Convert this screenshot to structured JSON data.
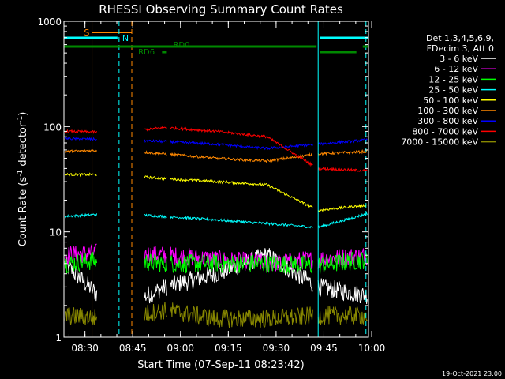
{
  "chart_data": {
    "type": "line",
    "title": "RHESSI Observing Summary Count Rates",
    "xlabel": "Start Time (07-Sep-11 08:23:42)",
    "ylabel_main": "Count Rate (s",
    "ylabel_sup1": "-1",
    "ylabel_mid": " detector",
    "ylabel_sup2": "-1",
    "ylabel_end": ")",
    "yscale": "log",
    "ylim": [
      1,
      1000
    ],
    "y_ticks": [
      1,
      10,
      100,
      1000
    ],
    "y_tick_labels": [
      "1",
      "10",
      "100",
      "1000"
    ],
    "xlim_min": [
      -0.3,
      95.3
    ],
    "x_ticks_min": [
      6.3,
      21.3,
      36.3,
      51.3,
      66.3,
      81.3,
      96.3
    ],
    "x_tick_labels": [
      "08:30",
      "08:45",
      "09:00",
      "09:15",
      "09:30",
      "09:45",
      "10:00"
    ],
    "legend_header": [
      "Det 1,3,4,5,6,9,",
      "FDecim 3, Att 0"
    ],
    "series": [
      {
        "name": "3 - 6 keV",
        "color": "#ffffff",
        "values": [
          5,
          1.8,
          3,
          4,
          6,
          3,
          2.5
        ]
      },
      {
        "name": "6 - 12 keV",
        "color": "#ff00ff",
        "values": [
          6,
          6.5,
          6,
          5.5,
          5,
          5.5,
          6
        ]
      },
      {
        "name": "12 - 25 keV",
        "color": "#00ff00",
        "values": [
          5,
          5.5,
          5,
          5,
          5,
          4.8,
          5.5
        ]
      },
      {
        "name": "25 - 50 keV",
        "color": "#00ffff",
        "values": [
          14,
          15,
          14,
          13,
          12,
          11,
          15
        ]
      },
      {
        "name": "50 - 100 keV",
        "color": "#ffff00",
        "values": [
          35,
          35,
          32,
          30,
          28,
          16,
          18
        ]
      },
      {
        "name": "100 - 300 keV",
        "color": "#ff8800",
        "values": [
          58,
          60,
          55,
          50,
          47,
          55,
          58
        ]
      },
      {
        "name": "300 - 800 keV",
        "color": "#0000ff",
        "values": [
          77,
          75,
          72,
          68,
          62,
          68,
          75
        ]
      },
      {
        "name": "800 - 7000 keV",
        "color": "#ff0000",
        "values": [
          90,
          88,
          98,
          90,
          80,
          40,
          38
        ]
      },
      {
        "name": "7000 - 15000 keV",
        "color": "#888800",
        "values": [
          1.6,
          1.5,
          1.8,
          1.5,
          1.5,
          1.6,
          1.6
        ]
      }
    ],
    "annotations": {
      "saa_label": "S",
      "night_label": "N",
      "rd0_label": "RD0",
      "rd6_label": "RD6"
    },
    "footer_date": "19-Oct-2021 23:00",
    "colors": {
      "background": "#000000",
      "axes": "#ffffff",
      "saa": "#ff8800",
      "night": "#00ffff",
      "rd": "#008800"
    }
  }
}
